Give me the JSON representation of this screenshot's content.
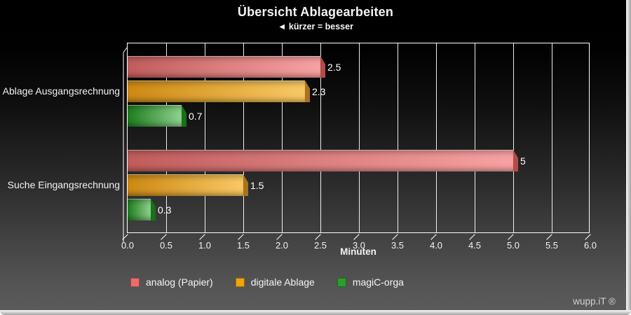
{
  "panel": {
    "watermark": "wupp.iT ®"
  },
  "chart_data": {
    "type": "bar",
    "orientation": "horizontal",
    "title": "Übersicht Ablagearbeiten",
    "subtitle": "◄ kürzer = besser",
    "xlabel": "Minuten",
    "xlim": [
      0.0,
      6.0
    ],
    "xtick_step": 0.5,
    "xtick_labels": [
      "0.0",
      "0.5",
      "1.0",
      "1.5",
      "2.0",
      "2.5",
      "3.0",
      "3.5",
      "4.0",
      "4.5",
      "5.0",
      "5.5",
      "6.0"
    ],
    "grid": true,
    "legend_position": "bottom",
    "categories": [
      "Ablage Ausgangsrechnung",
      "Suche Eingangsrechnung"
    ],
    "series": [
      {
        "name": "analog (Papier)",
        "color": "#ef6b6b",
        "values": [
          2.5,
          5
        ],
        "value_labels": [
          "2.5",
          "5"
        ]
      },
      {
        "name": "digitale Ablage",
        "color": "#f2a20a",
        "values": [
          2.3,
          1.5
        ],
        "value_labels": [
          "2.3",
          "1.5"
        ]
      },
      {
        "name": "magiC-orga",
        "color": "#2aa02a",
        "values": [
          0.7,
          0.3
        ],
        "value_labels": [
          "0.7",
          "0.3"
        ]
      }
    ]
  }
}
